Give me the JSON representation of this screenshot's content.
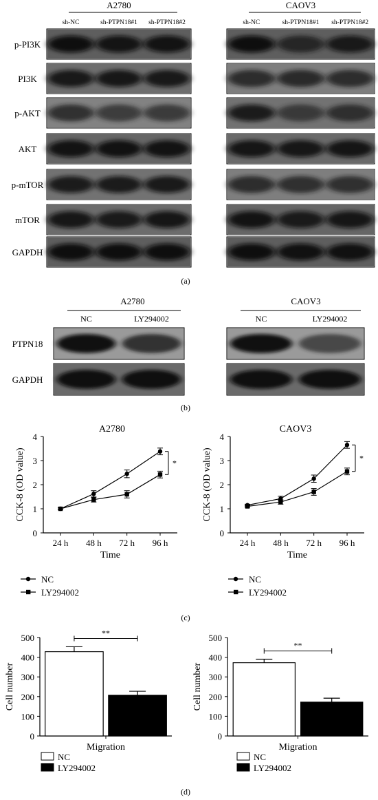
{
  "panel_a": {
    "label": "(a)",
    "left": {
      "cell_line": "A2780",
      "lanes": [
        "sh-NC",
        "sh-PTPN18#1",
        "sh-PTPN18#2"
      ]
    },
    "right": {
      "cell_line": "CAOV3",
      "lanes": [
        "sh-NC",
        "sh-PTPN18#1",
        "sh-PTPN18#2"
      ]
    },
    "proteins": [
      "p-PI3K",
      "PI3K",
      "p-AKT",
      "AKT",
      "p-mTOR",
      "mTOR",
      "GAPDH"
    ]
  },
  "panel_b": {
    "label": "(b)",
    "left": {
      "cell_line": "A2780",
      "lanes": [
        "NC",
        "LY294002"
      ]
    },
    "right": {
      "cell_line": "CAOV3",
      "lanes": [
        "NC",
        "LY294002"
      ]
    },
    "proteins": [
      "PTPN18",
      "GAPDH"
    ]
  },
  "panel_c": {
    "label": "(c)"
  },
  "panel_d": {
    "label": "(d)"
  },
  "chart_data": [
    {
      "type": "line",
      "title": "A2780",
      "xlabel": "Time",
      "ylabel": "CCK-8 (OD value)",
      "categories": [
        "24 h",
        "48 h",
        "72 h",
        "96 h"
      ],
      "ylim": [
        0,
        4
      ],
      "yticks": [
        "0",
        "1",
        "2",
        "3",
        "4"
      ],
      "series": [
        {
          "name": "NC",
          "marker": "circle",
          "values": [
            1.0,
            1.62,
            2.45,
            3.38
          ],
          "errors": [
            0.04,
            0.13,
            0.16,
            0.14
          ]
        },
        {
          "name": "LY294002",
          "marker": "square",
          "values": [
            1.0,
            1.38,
            1.6,
            2.42
          ],
          "errors": [
            0.04,
            0.1,
            0.15,
            0.14
          ]
        }
      ],
      "annotation": "*"
    },
    {
      "type": "line",
      "title": "CAOV3",
      "xlabel": "Time",
      "ylabel": "CCK-8 (OD value)",
      "categories": [
        "24 h",
        "48 h",
        "72 h",
        "96 h"
      ],
      "ylim": [
        0,
        4
      ],
      "yticks": [
        "0",
        "1",
        "2",
        "3",
        "4"
      ],
      "series": [
        {
          "name": "NC",
          "marker": "circle",
          "values": [
            1.15,
            1.42,
            2.25,
            3.65
          ],
          "errors": [
            0.04,
            0.1,
            0.15,
            0.14
          ]
        },
        {
          "name": "LY294002",
          "marker": "square",
          "values": [
            1.1,
            1.28,
            1.7,
            2.55
          ],
          "errors": [
            0.04,
            0.09,
            0.14,
            0.14
          ]
        }
      ],
      "annotation": "*"
    },
    {
      "type": "bar",
      "ylabel": "Cell number",
      "xlabel": "Migration",
      "ylim": [
        0,
        500
      ],
      "yticks": [
        "0",
        "100",
        "200",
        "300",
        "400",
        "500"
      ],
      "series": [
        {
          "name": "NC",
          "value": 428,
          "error": 25,
          "color": "#ffffff"
        },
        {
          "name": "LY294002",
          "value": 207,
          "error": 20,
          "color": "#000000"
        }
      ],
      "annotation": "**"
    },
    {
      "type": "bar",
      "ylabel": "Cell number",
      "xlabel": "Migration",
      "ylim": [
        0,
        500
      ],
      "yticks": [
        "0",
        "100",
        "200",
        "300",
        "400",
        "500"
      ],
      "series": [
        {
          "name": "NC",
          "value": 372,
          "error": 18,
          "color": "#ffffff"
        },
        {
          "name": "LY294002",
          "value": 172,
          "error": 20,
          "color": "#000000"
        }
      ],
      "annotation": "**"
    }
  ]
}
